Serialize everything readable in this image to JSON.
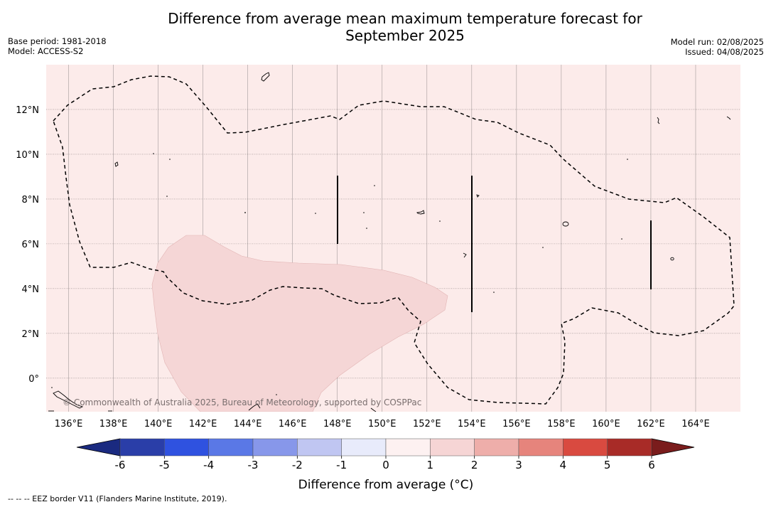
{
  "title": {
    "line1": "Difference from average mean maximum temperature forecast for",
    "line2": "September 2025"
  },
  "meta": {
    "base_period": "Base period: 1981-2018",
    "model": "Model: ACCESS-S2",
    "model_run": "Model run: 02/08/2025",
    "issued": "Issued: 04/08/2025"
  },
  "map": {
    "background_color": "#fcebea",
    "lon_range": [
      135,
      166
    ],
    "lat_range": [
      -1.5,
      14
    ],
    "lon_ticks": [
      {
        "value": 136,
        "label": "136°E"
      },
      {
        "value": 138,
        "label": "138°E"
      },
      {
        "value": 140,
        "label": "140°E"
      },
      {
        "value": 142,
        "label": "142°E"
      },
      {
        "value": 144,
        "label": "144°E"
      },
      {
        "value": 146,
        "label": "146°E"
      },
      {
        "value": 148,
        "label": "148°E"
      },
      {
        "value": 150,
        "label": "150°E"
      },
      {
        "value": 152,
        "label": "152°E"
      },
      {
        "value": 154,
        "label": "154°E"
      },
      {
        "value": 156,
        "label": "156°E"
      },
      {
        "value": 158,
        "label": "158°E"
      },
      {
        "value": 160,
        "label": "160°E"
      },
      {
        "value": 162,
        "label": "162°E"
      },
      {
        "value": 164,
        "label": "164°E"
      }
    ],
    "lat_ticks": [
      {
        "value": 0,
        "label": "0°"
      },
      {
        "value": 2,
        "label": "2°N"
      },
      {
        "value": 4,
        "label": "4°N"
      },
      {
        "value": 6,
        "label": "6°N"
      },
      {
        "value": 8,
        "label": "8°N"
      },
      {
        "value": 10,
        "label": "10°N"
      },
      {
        "value": 12,
        "label": "12°N"
      }
    ],
    "copyright": "© Commonwealth of Australia 2025, Bureau of Meteorology, supported by COSPPac"
  },
  "colorbar": {
    "label": "Difference from average (°C)",
    "ticks": [
      "-6",
      "-5",
      "-4",
      "-3",
      "-2",
      "-1",
      "0",
      "1",
      "2",
      "3",
      "4",
      "5",
      "6"
    ],
    "colors": [
      "#2a3ea8",
      "#2f52e0",
      "#5a78e6",
      "#8797ea",
      "#c0c6f2",
      "#e8ebfb",
      "#fdf1f1",
      "#f6d5d5",
      "#eeaeaa",
      "#e6847c",
      "#d94a40",
      "#a82b27"
    ],
    "low_extend_color": "#1a2a80",
    "high_extend_color": "#7a1c1c"
  },
  "footnote": "--  --  -- EEZ border V11 (Flanders Marine Institute, 2019)."
}
